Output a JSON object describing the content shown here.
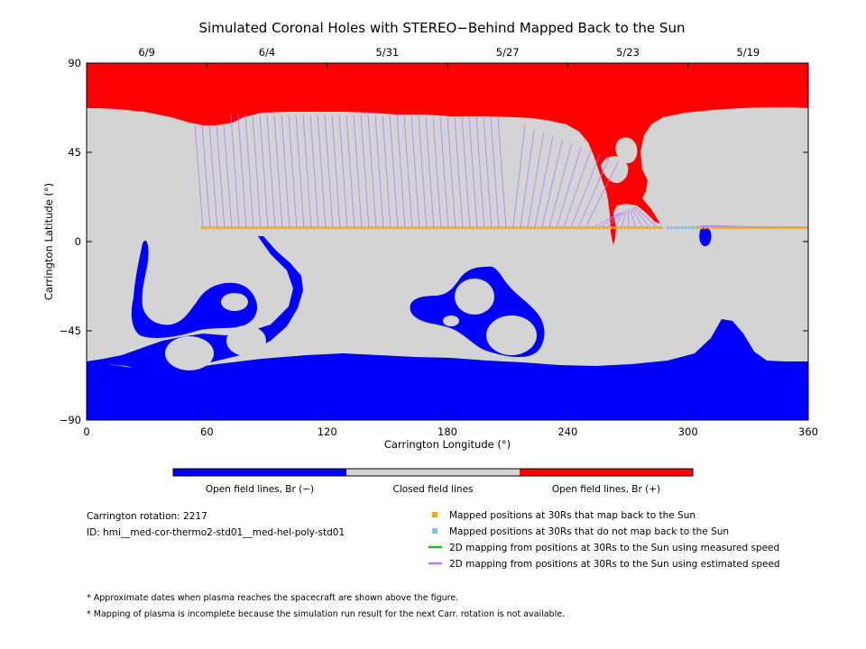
{
  "chart_data": {
    "type": "scatter",
    "title": "Simulated Coronal Holes with STEREO−Behind Mapped Back to the Sun",
    "xlabel": "Carrington Longitude (°)",
    "ylabel": "Carrington Latitude (°)",
    "xlim": [
      0,
      360
    ],
    "ylim": [
      -90,
      90
    ],
    "x_ticks": [
      0,
      60,
      120,
      180,
      240,
      300,
      360
    ],
    "y_ticks": [
      90,
      45,
      0,
      -45,
      -90
    ],
    "x_tick_labels": [
      "0",
      "60",
      "120",
      "180",
      "240",
      "300",
      "360"
    ],
    "y_tick_labels": [
      "90",
      "45",
      "0",
      "−45",
      "−90"
    ],
    "top_axis": {
      "dates": [
        {
          "label": "6/9",
          "lon": 30
        },
        {
          "label": "6/4",
          "lon": 90
        },
        {
          "label": "5/31",
          "lon": 150
        },
        {
          "label": "5/27",
          "lon": 210
        },
        {
          "label": "5/23",
          "lon": 270
        },
        {
          "label": "5/19",
          "lon": 330
        }
      ]
    },
    "colorbar": [
      {
        "label": "Open field lines, Br (−)",
        "color": "#0000ff"
      },
      {
        "label": "Closed field lines",
        "color": "#d4d4d4"
      },
      {
        "label": "Open field lines, Br (+)",
        "color": "#ff0000"
      }
    ],
    "legend": [
      {
        "label": "Mapped positions at 30Rs that map back to the Sun",
        "color": "#ffa500",
        "kind": "square"
      },
      {
        "label": "Mapped positions at 30Rs that do not map back to the Sun",
        "color": "#7fbfff",
        "kind": "square"
      },
      {
        "label": "2D mapping from positions at 30Rs to the Sun using measured speed",
        "color": "#00cc00",
        "kind": "line"
      },
      {
        "label": "2D mapping from positions at 30Rs to the Sun using estimated speed",
        "color": "#b07fff",
        "kind": "line"
      }
    ],
    "series": [
      {
        "name": "Mapped positions at 30Rs that map back to the Sun",
        "lat": 7,
        "lon_start": 58,
        "lon_end": 288,
        "lon_start2": 305,
        "lon_end2": 360
      },
      {
        "name": "Mapped positions at 30Rs that do not map back to the Sun",
        "lat": 7,
        "lon_start": 290,
        "lon_end": 305
      }
    ],
    "regions": {
      "closed_color": "#d4d4d4",
      "positive_color": "#ff0000",
      "negative_color": "#0000ff"
    },
    "grid": false
  },
  "info": {
    "rotation": "Carrington rotation: 2217",
    "id": "ID: hmi__med-cor-thermo2-std01__med-hel-poly-std01"
  },
  "notes": [
    "* Approximate dates when plasma reaches the spacecraft are shown above the figure.",
    "* Mapping of plasma is incomplete because the simulation run result for the next Carr. rotation is not available."
  ]
}
